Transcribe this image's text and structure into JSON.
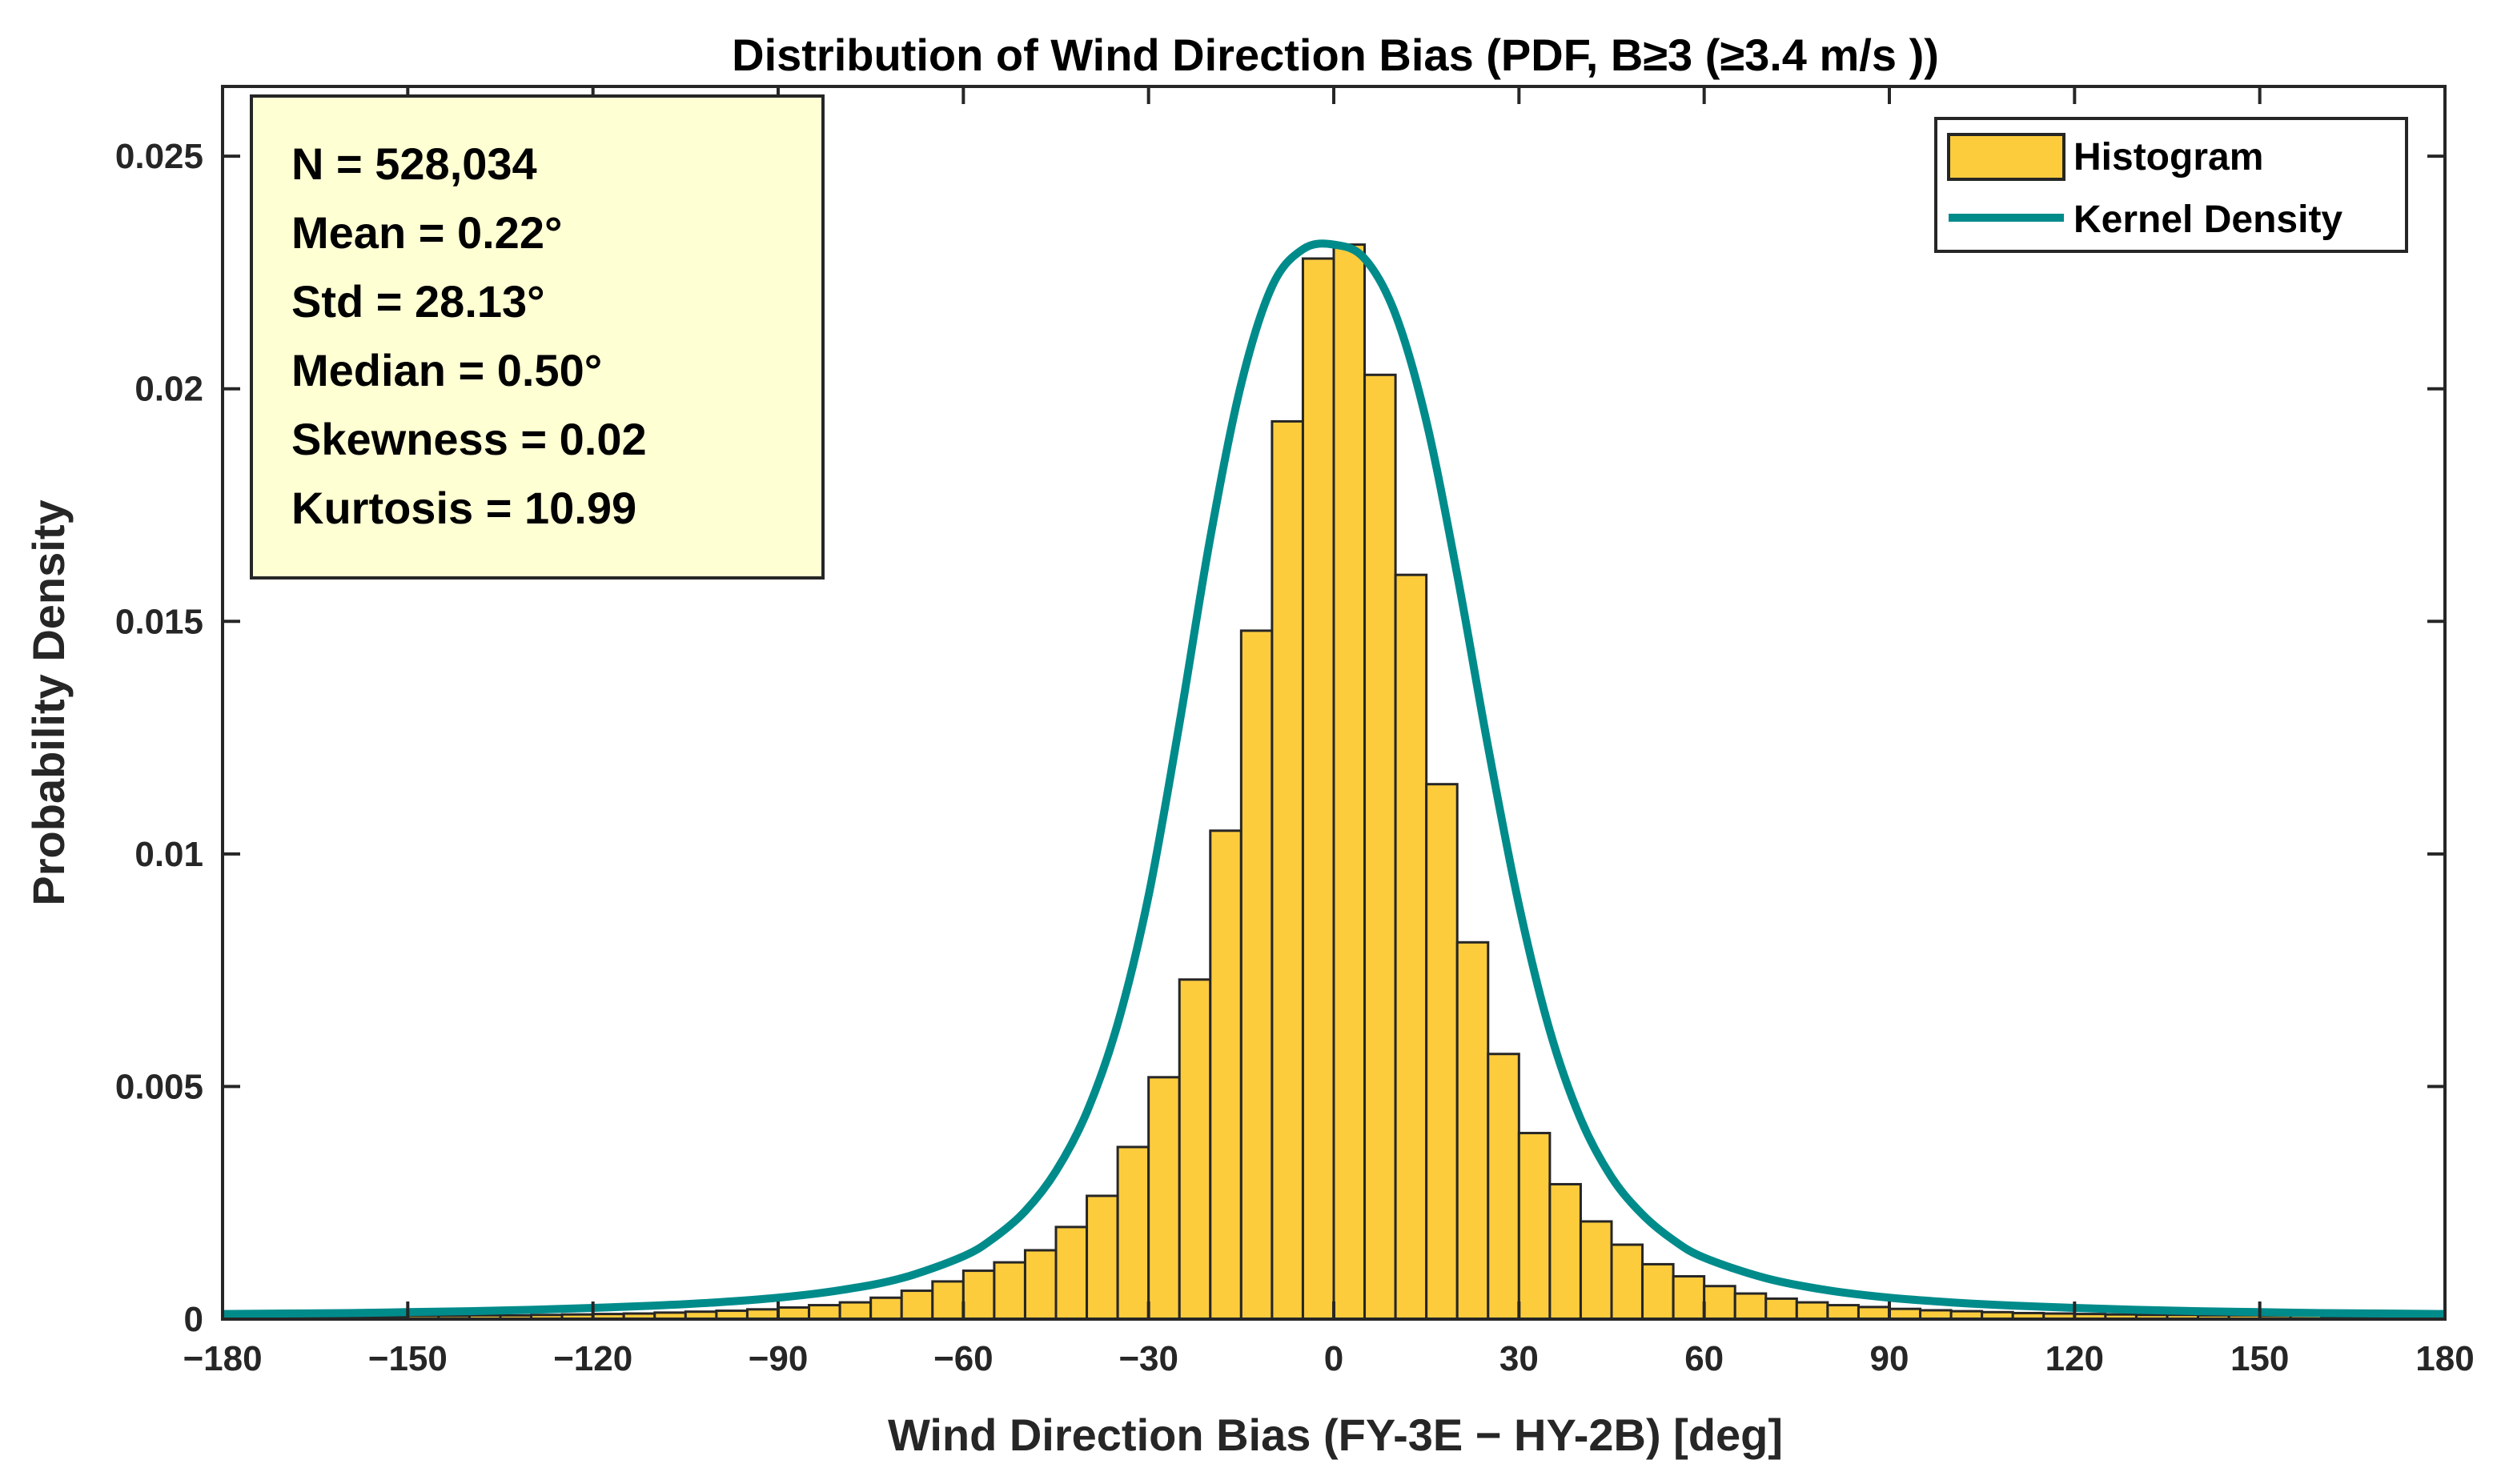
{
  "chart_data": {
    "type": "bar",
    "title": "Distribution of Wind Direction Bias (PDF, B≥3 (≥3.4 m/s   ))",
    "xlabel": "Wind Direction Bias (FY-3E − HY-2B) [deg]",
    "ylabel": "Probability Density",
    "xlim": [
      -180,
      180
    ],
    "ylim": [
      0,
      0.0265
    ],
    "x_ticks": [
      -180,
      -150,
      -120,
      -90,
      -60,
      -30,
      0,
      30,
      60,
      90,
      120,
      150,
      180
    ],
    "x_tick_labels": [
      "−180",
      "−150",
      "−120",
      "−90",
      "−60",
      "−30",
      "0",
      "30",
      "60",
      "90",
      "120",
      "150",
      "180"
    ],
    "y_ticks": [
      0,
      0.005,
      0.01,
      0.015,
      0.02,
      0.025
    ],
    "y_tick_labels": [
      "0",
      "0.005",
      "0.01",
      "0.015",
      "0.02",
      "0.025"
    ],
    "grid": false,
    "legend_position": "top-right",
    "stats": [
      "N = 528,034",
      "Mean = 0.22°",
      "Std = 28.13°",
      "Median = 0.50°",
      "Skewness = 0.02",
      "Kurtosis = 10.99"
    ],
    "series": [
      {
        "name": "Histogram",
        "kind": "histogram",
        "color": "#FDCC3D",
        "edge_color": "#262626",
        "bin_width": 5,
        "bin_centers": [
          -177.5,
          -172.5,
          -167.5,
          -162.5,
          -157.5,
          -152.5,
          -147.5,
          -142.5,
          -137.5,
          -132.5,
          -127.5,
          -122.5,
          -117.5,
          -112.5,
          -107.5,
          -102.5,
          -97.5,
          -92.5,
          -87.5,
          -82.5,
          -77.5,
          -72.5,
          -67.5,
          -62.5,
          -57.5,
          -52.5,
          -47.5,
          -42.5,
          -37.5,
          -32.5,
          -27.5,
          -22.5,
          -17.5,
          -12.5,
          -7.5,
          -2.5,
          2.5,
          7.5,
          12.5,
          17.5,
          22.5,
          27.5,
          32.5,
          37.5,
          42.5,
          47.5,
          52.5,
          57.5,
          62.5,
          67.5,
          72.5,
          77.5,
          82.5,
          87.5,
          92.5,
          97.5,
          102.5,
          107.5,
          112.5,
          117.5,
          122.5,
          127.5,
          132.5,
          137.5,
          142.5,
          147.5,
          152.5,
          157.5,
          162.5,
          167.5,
          172.5,
          177.5
        ],
        "values": [
          5e-05,
          5e-05,
          5e-05,
          6e-05,
          6e-05,
          6e-05,
          7e-05,
          7e-05,
          8e-05,
          8e-05,
          9e-05,
          0.0001,
          0.00011,
          0.00012,
          0.00014,
          0.00016,
          0.00018,
          0.00021,
          0.00025,
          0.0003,
          0.00036,
          0.00046,
          0.00061,
          0.00081,
          0.00104,
          0.00122,
          0.00148,
          0.00198,
          0.00265,
          0.0037,
          0.0052,
          0.0073,
          0.0105,
          0.0148,
          0.0193,
          0.0228,
          0.0231,
          0.0203,
          0.016,
          0.0115,
          0.0081,
          0.0057,
          0.004,
          0.0029,
          0.0021,
          0.0016,
          0.00118,
          0.00092,
          0.00071,
          0.00055,
          0.00044,
          0.00036,
          0.0003,
          0.00026,
          0.00022,
          0.00019,
          0.00017,
          0.00015,
          0.00013,
          0.00012,
          0.00011,
          0.0001,
          9e-05,
          9e-05,
          8e-05,
          8e-05,
          7e-05,
          7e-05,
          6e-05,
          6e-05,
          5e-05,
          5e-05
        ]
      },
      {
        "name": "Kernel Density",
        "kind": "line",
        "color": "#008B8B",
        "x": [
          -180,
          -170,
          -160,
          -150,
          -140,
          -130,
          -120,
          -110,
          -100,
          -90,
          -80,
          -70,
          -60,
          -55,
          -50,
          -45,
          -40,
          -35,
          -30,
          -25,
          -20,
          -15,
          -10,
          -5,
          0,
          5,
          10,
          15,
          20,
          25,
          30,
          35,
          40,
          45,
          50,
          55,
          60,
          70,
          80,
          90,
          100,
          110,
          120,
          130,
          140,
          150,
          160,
          170,
          180
        ],
        "y": [
          0.00011,
          0.00012,
          0.00013,
          0.00015,
          0.00017,
          0.0002,
          0.00024,
          0.00029,
          0.00036,
          0.00046,
          0.00062,
          0.00088,
          0.00135,
          0.00175,
          0.00232,
          0.00318,
          0.00445,
          0.00635,
          0.0091,
          0.0128,
          0.0168,
          0.0201,
          0.0222,
          0.023,
          0.0231,
          0.0228,
          0.0216,
          0.0193,
          0.016,
          0.0123,
          0.0089,
          0.0062,
          0.0043,
          0.00305,
          0.00225,
          0.0017,
          0.00132,
          0.00088,
          0.00062,
          0.00046,
          0.00036,
          0.00029,
          0.00024,
          0.0002,
          0.00017,
          0.00015,
          0.00013,
          0.00012,
          0.00011
        ]
      }
    ]
  }
}
